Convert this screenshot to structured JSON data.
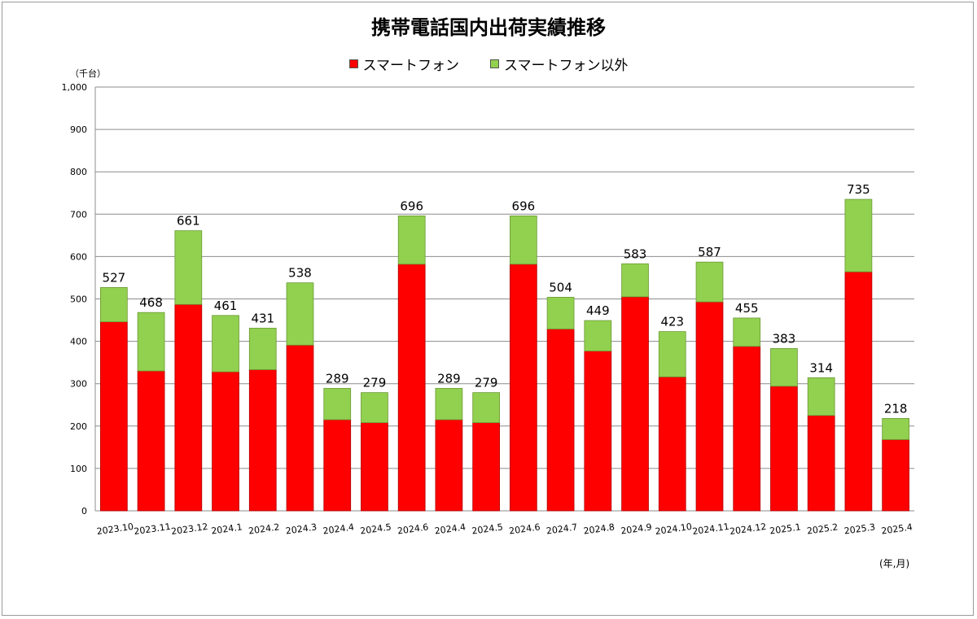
{
  "chart_data": {
    "type": "bar",
    "stacked": true,
    "title": "携帯電話国内出荷実績推移",
    "y_unit_label": "（千台）",
    "x_unit_label": "(年,月)",
    "ylim": [
      0,
      1000
    ],
    "yticks": [
      "0",
      "100",
      "200",
      "300",
      "400",
      "500",
      "600",
      "700",
      "800",
      "900",
      "1,000"
    ],
    "grid": true,
    "legend_position": "top",
    "categories": [
      "2023.10",
      "2023.11",
      "2023.12",
      "2024.1",
      "2024.2",
      "2024.3",
      "2024.4",
      "2024.5",
      "2024.6",
      "2024.4",
      "2024.5",
      "2024.6",
      "2024.7",
      "2024.8",
      "2024.9",
      "2024.10",
      "2024.11",
      "2024.12",
      "2025.1",
      "2025.2",
      "2025.3",
      "2025.4"
    ],
    "series": [
      {
        "name": "スマートフォン",
        "color": "#ff0000",
        "values": [
          446,
          330,
          487,
          328,
          333,
          391,
          215,
          208,
          582,
          215,
          208,
          582,
          429,
          377,
          505,
          316,
          493,
          388,
          294,
          225,
          564,
          168
        ]
      },
      {
        "name": "スマートフォン以外",
        "color": "#92d050",
        "values": [
          81,
          138,
          174,
          133,
          98,
          147,
          74,
          71,
          114,
          74,
          71,
          114,
          75,
          72,
          78,
          107,
          94,
          67,
          89,
          89,
          171,
          50
        ]
      }
    ],
    "totals": [
      "527",
      "468",
      "661",
      "461",
      "431",
      "538",
      "289",
      "279",
      "696",
      "289",
      "279",
      "696",
      "504",
      "449",
      "583",
      "423",
      "587",
      "455",
      "383",
      "314",
      "735",
      "218"
    ]
  }
}
